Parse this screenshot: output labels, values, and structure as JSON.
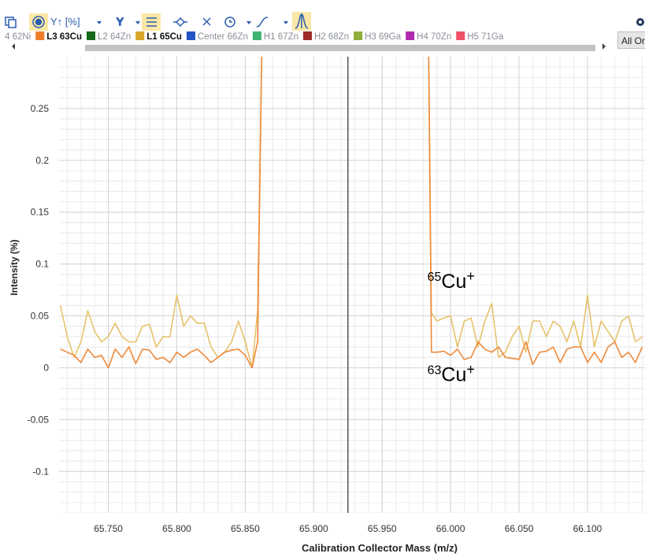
{
  "toolbar": {
    "y_scale": "Y↑ [%]",
    "y_mode": "Y",
    "all_on": "All On"
  },
  "channels": [
    {
      "name": "4 62Ni",
      "color": "#9aa0a6",
      "active": false
    },
    {
      "name": "L3 63Cu",
      "color": "#ee7d2b",
      "active": true
    },
    {
      "name": "L2 64Zn",
      "color": "#17691a",
      "active": false
    },
    {
      "name": "L1 65Cu",
      "color": "#d9a62a",
      "active": true
    },
    {
      "name": "Center 66Zn",
      "color": "#2453c4",
      "active": false
    },
    {
      "name": "H1 67Zn",
      "color": "#3cb371",
      "active": false
    },
    {
      "name": "H2 68Zn",
      "color": "#a02c28",
      "active": false
    },
    {
      "name": "H3 69Ga",
      "color": "#8fae3a",
      "active": false
    },
    {
      "name": "H4 70Zn",
      "color": "#b02ab0",
      "active": false
    },
    {
      "name": "H5 71Ga",
      "color": "#f0506a",
      "active": false
    }
  ],
  "chart_data": {
    "type": "line",
    "x_label": "Calibration Collector Mass (m/z)",
    "y_label": "Intensity (%)",
    "xlim": [
      65.714,
      66.142
    ],
    "ylim": [
      -0.14,
      0.3
    ],
    "xticks": [
      {
        "value": 65.75,
        "label": "65.750"
      },
      {
        "value": 65.8,
        "label": "65.800"
      },
      {
        "value": 65.85,
        "label": "65.850"
      },
      {
        "value": 65.9,
        "label": "65.900"
      },
      {
        "value": 65.95,
        "label": "65.950"
      },
      {
        "value": 66.0,
        "label": "66.000"
      },
      {
        "value": 66.05,
        "label": "66.050"
      },
      {
        "value": 66.1,
        "label": "66.100"
      }
    ],
    "yticks": [
      -0.1,
      -0.05,
      0,
      0.05,
      0.1,
      0.15,
      0.2,
      0.25
    ],
    "grid": true,
    "minor_divisions": 5,
    "marker_x": 65.925,
    "x": [
      65.715,
      65.72,
      65.725,
      65.73,
      65.735,
      65.74,
      65.745,
      65.75,
      65.755,
      65.76,
      65.765,
      65.77,
      65.775,
      65.78,
      65.785,
      65.79,
      65.795,
      65.8,
      65.805,
      65.81,
      65.815,
      65.82,
      65.825,
      65.83,
      65.835,
      65.84,
      65.845,
      65.85,
      65.855,
      65.859,
      65.862,
      65.92,
      65.984,
      65.986,
      65.99,
      65.995,
      66.0,
      66.005,
      66.01,
      66.015,
      66.02,
      66.025,
      66.03,
      66.035,
      66.04,
      66.045,
      66.05,
      66.055,
      66.06,
      66.065,
      66.07,
      66.075,
      66.08,
      66.085,
      66.09,
      66.095,
      66.1,
      66.105,
      66.11,
      66.115,
      66.12,
      66.125,
      66.13,
      66.135,
      66.14
    ],
    "series": [
      {
        "color": "#e6c26c",
        "values": [
          0.06,
          0.03,
          0.01,
          0.025,
          0.055,
          0.035,
          0.025,
          0.03,
          0.043,
          0.03,
          0.025,
          0.025,
          0.04,
          0.042,
          0.02,
          0.03,
          0.03,
          0.07,
          0.04,
          0.05,
          0.043,
          0.043,
          0.02,
          0.01,
          0.015,
          0.025,
          0.045,
          0.025,
          0.0,
          0.055,
          0.3,
          null,
          0.3,
          0.053,
          0.045,
          0.048,
          0.05,
          0.02,
          0.045,
          0.048,
          0.02,
          0.045,
          0.062,
          0.01,
          0.015,
          0.03,
          0.04,
          0.015,
          0.045,
          0.045,
          0.03,
          0.045,
          0.04,
          0.025,
          0.045,
          0.02,
          0.07,
          0.02,
          0.045,
          0.035,
          0.025,
          0.045,
          0.05,
          0.025,
          0.03
        ]
      },
      {
        "color": "#ee8a3c",
        "values": [
          0.018,
          0.015,
          0.012,
          0.005,
          0.018,
          0.01,
          0.012,
          0.0,
          0.018,
          0.01,
          0.02,
          0.004,
          0.018,
          0.017,
          0.008,
          0.01,
          0.005,
          0.015,
          0.01,
          0.015,
          0.018,
          0.012,
          0.005,
          0.01,
          0.015,
          0.017,
          0.018,
          0.012,
          0.0,
          0.025,
          0.3,
          null,
          0.3,
          0.015,
          0.015,
          0.016,
          0.012,
          0.018,
          0.008,
          0.01,
          0.025,
          0.018,
          0.015,
          0.02,
          0.01,
          0.009,
          0.008,
          0.025,
          0.003,
          0.015,
          0.016,
          0.02,
          0.005,
          0.018,
          0.02,
          0.02,
          0.005,
          0.015,
          0.005,
          0.02,
          0.025,
          0.01,
          0.015,
          0.005,
          0.02
        ]
      }
    ],
    "annotations": [
      {
        "mass": "65",
        "element": "Cu",
        "charge": "+",
        "x": 65.983,
        "y": 0.077
      },
      {
        "mass": "63",
        "element": "Cu",
        "charge": "+",
        "x": 65.983,
        "y": -0.013
      }
    ]
  }
}
